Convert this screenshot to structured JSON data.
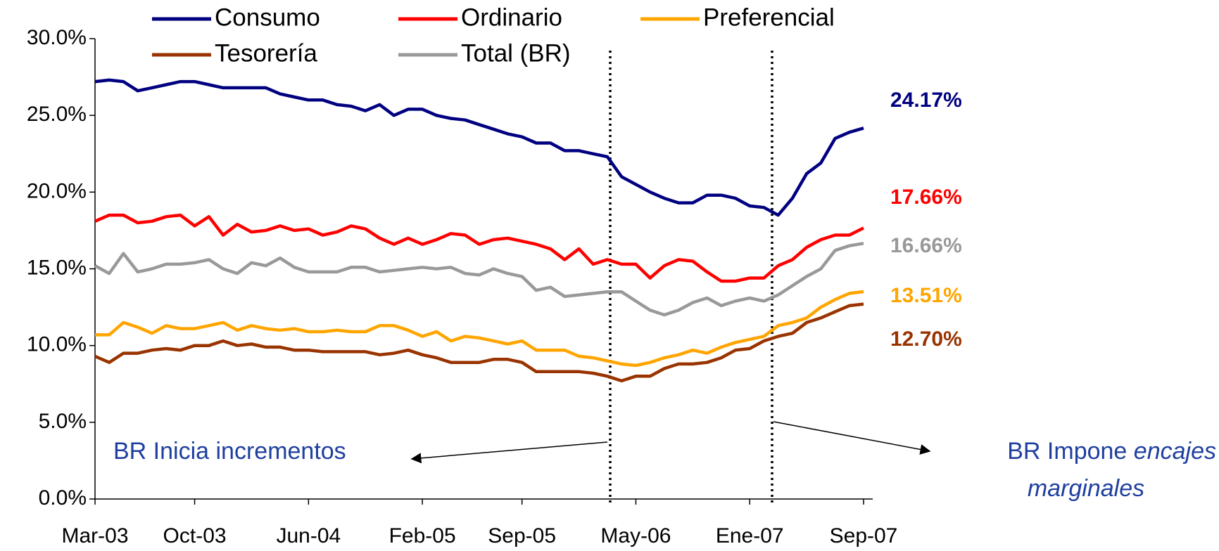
{
  "chart_data": {
    "type": "line",
    "categories": [
      "Mar-03",
      null,
      null,
      null,
      null,
      null,
      null,
      "Oct-03",
      null,
      null,
      null,
      null,
      null,
      null,
      null,
      "Jun-04",
      null,
      null,
      null,
      null,
      null,
      null,
      null,
      "Feb-05",
      null,
      null,
      null,
      null,
      null,
      null,
      "Sep-05",
      null,
      null,
      null,
      null,
      null,
      null,
      null,
      "May-06",
      null,
      null,
      null,
      null,
      null,
      null,
      null,
      "Ene-07",
      null,
      null,
      null,
      null,
      null,
      null,
      null,
      "Sep-07"
    ],
    "ylim": [
      0,
      30
    ],
    "yticks": [
      {
        "value": 0,
        "label": "0.0%"
      },
      {
        "value": 5,
        "label": "5.0%"
      },
      {
        "value": 10,
        "label": "10.0%"
      },
      {
        "value": 15,
        "label": "15.0%"
      },
      {
        "value": 20,
        "label": "20.0%"
      },
      {
        "value": 25,
        "label": "25.0%"
      },
      {
        "value": 30,
        "label": "30.0%"
      }
    ],
    "series": [
      {
        "name": "Consumo",
        "color": "#000080",
        "values": [
          27.2,
          27.3,
          27.2,
          26.6,
          26.8,
          27.0,
          27.2,
          27.2,
          27.0,
          26.8,
          26.8,
          26.8,
          26.8,
          26.4,
          26.2,
          26.0,
          26.0,
          25.7,
          25.6,
          25.3,
          25.7,
          25.0,
          25.4,
          25.4,
          25.0,
          24.8,
          24.7,
          24.4,
          24.1,
          23.8,
          23.6,
          23.2,
          23.2,
          22.7,
          22.7,
          22.5,
          22.3,
          21.0,
          20.5,
          20.0,
          19.6,
          19.3,
          19.3,
          19.8,
          19.8,
          19.6,
          19.1,
          19.0,
          18.5,
          19.6,
          21.2,
          21.9,
          23.5,
          23.9,
          24.17
        ],
        "value_labels": [
          null,
          null,
          null,
          null,
          null,
          null,
          null,
          null,
          null,
          null,
          null,
          null,
          null,
          null,
          null,
          null,
          null,
          null,
          null,
          null,
          null,
          null,
          null,
          null,
          null,
          null,
          null,
          null,
          null,
          null,
          null,
          null,
          null,
          null,
          null,
          null,
          null,
          null,
          null,
          null,
          null,
          null,
          null,
          null,
          null,
          null,
          null,
          null,
          null,
          null,
          null,
          null,
          null,
          null,
          "24.17%"
        ]
      },
      {
        "name": "Ordinario",
        "color": "#ff0000",
        "values": [
          18.1,
          18.5,
          18.5,
          18.0,
          18.1,
          18.4,
          18.5,
          17.8,
          18.4,
          17.2,
          17.9,
          17.4,
          17.5,
          17.8,
          17.5,
          17.6,
          17.2,
          17.4,
          17.8,
          17.6,
          17.0,
          16.6,
          17.0,
          16.6,
          16.9,
          17.3,
          17.2,
          16.6,
          16.9,
          17.0,
          16.8,
          16.6,
          16.3,
          15.6,
          16.3,
          15.3,
          15.6,
          15.3,
          15.3,
          14.4,
          15.2,
          15.6,
          15.5,
          14.8,
          14.2,
          14.2,
          14.4,
          14.4,
          15.2,
          15.6,
          16.4,
          16.9,
          17.2,
          17.2,
          17.66
        ],
        "value_labels": [
          null,
          null,
          null,
          null,
          null,
          null,
          null,
          null,
          null,
          null,
          null,
          null,
          null,
          null,
          null,
          null,
          null,
          null,
          null,
          null,
          null,
          null,
          null,
          null,
          null,
          null,
          null,
          null,
          null,
          null,
          null,
          null,
          null,
          null,
          null,
          null,
          null,
          null,
          null,
          null,
          null,
          null,
          null,
          null,
          null,
          null,
          null,
          null,
          null,
          null,
          null,
          null,
          null,
          null,
          "17.66%"
        ]
      },
      {
        "name": "Preferencial",
        "color": "#ffa500",
        "values": [
          10.7,
          10.7,
          11.5,
          11.2,
          10.8,
          11.3,
          11.1,
          11.1,
          11.3,
          11.5,
          11.0,
          11.3,
          11.1,
          11.0,
          11.1,
          10.9,
          10.9,
          11.0,
          10.9,
          10.9,
          11.3,
          11.3,
          11.0,
          10.6,
          10.9,
          10.3,
          10.6,
          10.5,
          10.3,
          10.1,
          10.3,
          9.7,
          9.7,
          9.7,
          9.3,
          9.2,
          9.0,
          8.8,
          8.7,
          8.9,
          9.2,
          9.4,
          9.7,
          9.5,
          9.9,
          10.2,
          10.4,
          10.6,
          11.3,
          11.5,
          11.8,
          12.5,
          13.0,
          13.4,
          13.51
        ],
        "value_labels": [
          null,
          null,
          null,
          null,
          null,
          null,
          null,
          null,
          null,
          null,
          null,
          null,
          null,
          null,
          null,
          null,
          null,
          null,
          null,
          null,
          null,
          null,
          null,
          null,
          null,
          null,
          null,
          null,
          null,
          null,
          null,
          null,
          null,
          null,
          null,
          null,
          null,
          null,
          null,
          null,
          null,
          null,
          null,
          null,
          null,
          null,
          null,
          null,
          null,
          null,
          null,
          null,
          null,
          null,
          "13.51%"
        ]
      },
      {
        "name": "Tesorería",
        "color": "#993300",
        "values": [
          9.3,
          8.9,
          9.5,
          9.5,
          9.7,
          9.8,
          9.7,
          10.0,
          10.0,
          10.3,
          10.0,
          10.1,
          9.9,
          9.9,
          9.7,
          9.7,
          9.6,
          9.6,
          9.6,
          9.6,
          9.4,
          9.5,
          9.7,
          9.4,
          9.2,
          8.9,
          8.9,
          8.9,
          9.1,
          9.1,
          8.9,
          8.3,
          8.3,
          8.3,
          8.3,
          8.2,
          8.0,
          7.7,
          8.0,
          8.0,
          8.5,
          8.8,
          8.8,
          8.9,
          9.2,
          9.7,
          9.8,
          10.3,
          10.6,
          10.8,
          11.5,
          11.8,
          12.2,
          12.6,
          12.7
        ],
        "value_labels": [
          null,
          null,
          null,
          null,
          null,
          null,
          null,
          null,
          null,
          null,
          null,
          null,
          null,
          null,
          null,
          null,
          null,
          null,
          null,
          null,
          null,
          null,
          null,
          null,
          null,
          null,
          null,
          null,
          null,
          null,
          null,
          null,
          null,
          null,
          null,
          null,
          null,
          null,
          null,
          null,
          null,
          null,
          null,
          null,
          null,
          null,
          null,
          null,
          null,
          null,
          null,
          null,
          null,
          null,
          "12.70%"
        ]
      },
      {
        "name": "Total (BR)",
        "color": "#999999",
        "values": [
          15.2,
          14.7,
          16.0,
          14.8,
          15.0,
          15.3,
          15.3,
          15.4,
          15.6,
          15.0,
          14.7,
          15.4,
          15.2,
          15.7,
          15.1,
          14.8,
          14.8,
          14.8,
          15.1,
          15.1,
          14.8,
          14.9,
          15.0,
          15.1,
          15.0,
          15.1,
          14.7,
          14.6,
          15.0,
          14.7,
          14.5,
          13.6,
          13.8,
          13.2,
          13.3,
          13.4,
          13.5,
          13.5,
          12.9,
          12.3,
          12.0,
          12.3,
          12.8,
          13.1,
          12.6,
          12.9,
          13.1,
          12.9,
          13.3,
          13.9,
          14.5,
          15.0,
          16.2,
          16.5,
          16.66
        ],
        "value_labels": [
          null,
          null,
          null,
          null,
          null,
          null,
          null,
          null,
          null,
          null,
          null,
          null,
          null,
          null,
          null,
          null,
          null,
          null,
          null,
          null,
          null,
          null,
          null,
          null,
          null,
          null,
          null,
          null,
          null,
          null,
          null,
          null,
          null,
          null,
          null,
          null,
          null,
          null,
          null,
          null,
          null,
          null,
          null,
          null,
          null,
          null,
          null,
          null,
          null,
          null,
          null,
          null,
          null,
          null,
          "16.66%"
        ]
      }
    ],
    "annotations": {
      "left": "BR Inicia incrementos",
      "right": "BR Impone",
      "right_italic": "encajes",
      "right_italic_2": "marginales"
    }
  }
}
